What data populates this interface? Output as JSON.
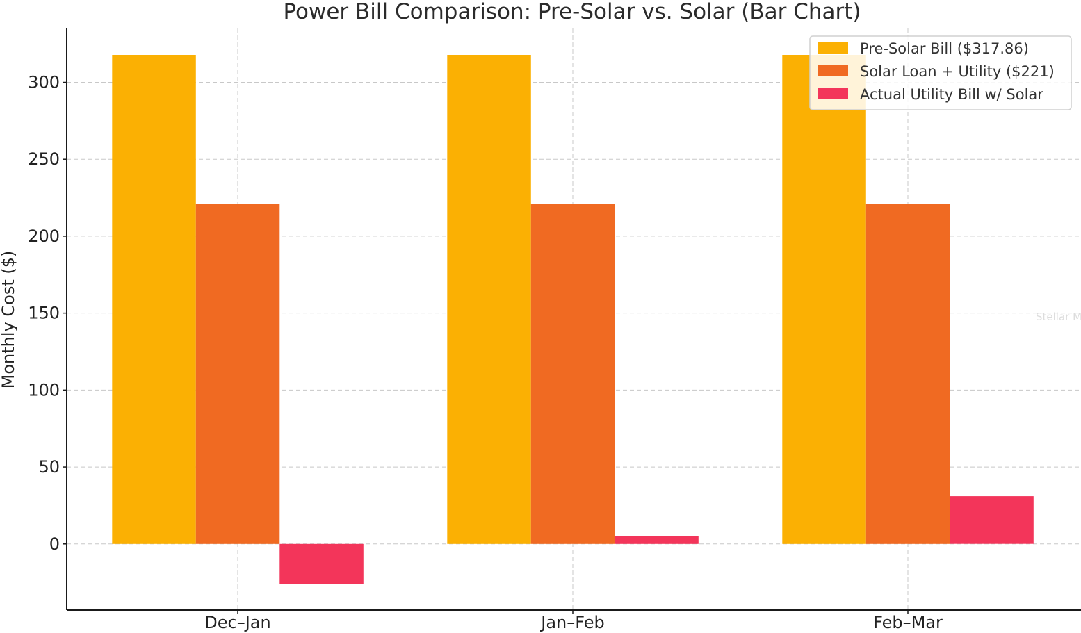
{
  "chart_data": {
    "type": "bar",
    "title": "Power Bill Comparison: Pre-Solar vs. Solar (Bar Chart)",
    "xlabel": "",
    "ylabel": "Monthly Cost ($)",
    "categories": [
      "Dec–Jan",
      "Jan–Feb",
      "Feb–Mar"
    ],
    "series": [
      {
        "name": "Pre-Solar Bill ($317.86)",
        "values": [
          317.86,
          317.86,
          317.86
        ],
        "color": "#fbb003"
      },
      {
        "name": "Solar Loan + Utility ($221)",
        "values": [
          221,
          221,
          221
        ],
        "color": "#f06a22"
      },
      {
        "name": "Actual Utility Bill w/ Solar",
        "values": [
          -26,
          5,
          31
        ],
        "color": "#f3355a"
      }
    ],
    "ylim": [
      -43,
      335
    ],
    "yticks": [
      0,
      50,
      100,
      150,
      200,
      250,
      300
    ],
    "grid": true,
    "legend_position": "top-right"
  },
  "watermark": "Stellar MLS"
}
